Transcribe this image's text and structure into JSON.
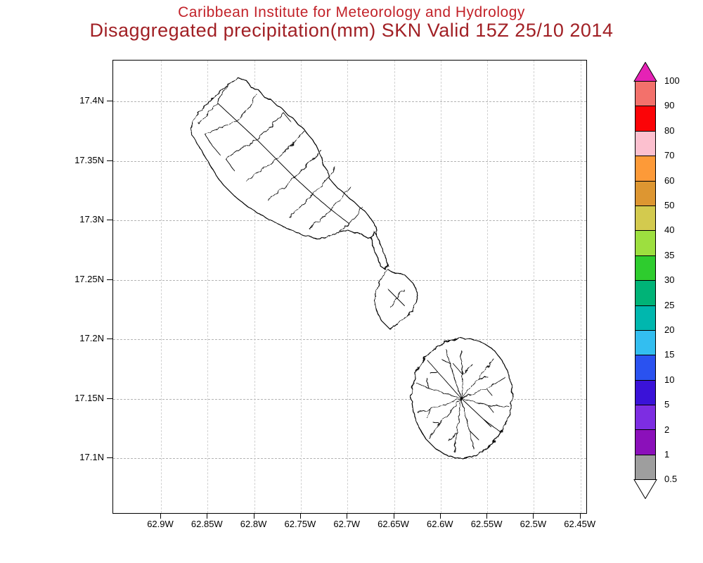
{
  "header": {
    "line1": "Caribbean Institute for Meteorology and Hydrology",
    "line2": "Disaggregated precipitation(mm) SKN Valid 15Z 25/10 2014",
    "line1_color": "#c22229",
    "line2_color": "#a12025"
  },
  "chart_data": {
    "type": "map",
    "title": "Disaggregated precipitation(mm) SKN Valid 15Z 25/10 2014",
    "source": "Caribbean Institute for Meteorology and Hydrology",
    "region": "SKN (St. Kitts and Nevis)",
    "valid_time": "15Z 25/10 2014",
    "units": "mm",
    "grid": true,
    "shading": "none (no precipitation shading >= 0.5 mm plotted; islands drawn as outlines with watershed/drainage boundaries)",
    "features": [
      "St. Kitts island outline with drainage network",
      "Southeast Peninsula",
      "Nevis island outline with radial drainage network"
    ],
    "y_axis": {
      "ticks": [
        "17.4N",
        "17.35N",
        "17.3N",
        "17.25N",
        "17.2N",
        "17.15N",
        "17.1N"
      ]
    },
    "x_axis": {
      "ticks": [
        "62.9W",
        "62.85W",
        "62.8W",
        "62.75W",
        "62.7W",
        "62.65W",
        "62.6W",
        "62.55W",
        "62.5W",
        "62.45W"
      ]
    },
    "colorbar": {
      "labels": [
        "100",
        "90",
        "80",
        "70",
        "60",
        "50",
        "40",
        "35",
        "30",
        "25",
        "20",
        "15",
        "10",
        "5",
        "2",
        "1",
        "0.5"
      ],
      "top_arrow_color": "#e522b5",
      "bottom_arrow_color": "#ffffff",
      "segment_colors": [
        "#f3716b",
        "#fb0407",
        "#fcc0cf",
        "#fd9a38",
        "#dd9631",
        "#d3ca4e",
        "#9ddf3f",
        "#2ecc2e",
        "#00b377",
        "#00b7ae",
        "#33bef0",
        "#2a52f0",
        "#3a12d8",
        "#7d2de2",
        "#8b10ba",
        "#9e9e9e"
      ]
    }
  }
}
